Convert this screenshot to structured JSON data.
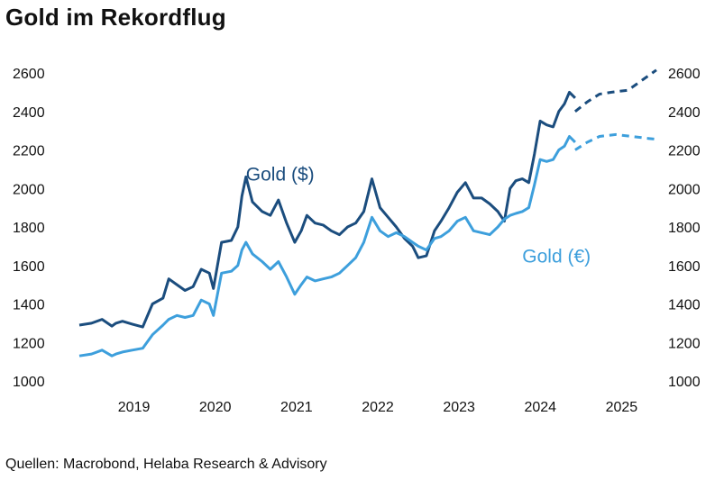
{
  "title": "Gold im Rekordflug",
  "source": "Quellen: Macrobond, Helaba Research & Advisory",
  "colors": {
    "usd": "#1b4d7e",
    "eur": "#3d9fdc"
  },
  "chart_data": {
    "type": "line",
    "title": "Gold im Rekordflug",
    "xlabel": "",
    "ylabel": "",
    "xlim": [
      2018.55,
      2025.65
    ],
    "ylim": [
      1000,
      2600
    ],
    "y_ticks": [
      1000,
      1200,
      1400,
      1600,
      1800,
      2000,
      2200,
      2400,
      2600
    ],
    "y_tick_labels": [
      "1000",
      "1200",
      "1400",
      "1600",
      "1800",
      "2000",
      "2200",
      "2400",
      "2600"
    ],
    "x_tick_labels": [
      {
        "label": "2019",
        "x": 2019.0
      },
      {
        "label": "2020",
        "x": 2020.0
      },
      {
        "label": "2021",
        "x": 2021.0
      },
      {
        "label": "2022",
        "x": 2022.0
      },
      {
        "label": "2023",
        "x": 2023.0
      },
      {
        "label": "2024",
        "x": 2024.0
      },
      {
        "label": "2025",
        "x": 2025.0
      }
    ],
    "grid": false,
    "axes": "y-axis labels on both left and right",
    "series": [
      {
        "name": "Gold ($)",
        "label_pos": [
          2020.6,
          2040
        ],
        "actual": [
          [
            2018.55,
            1290
          ],
          [
            2018.7,
            1300
          ],
          [
            2018.83,
            1320
          ],
          [
            2018.95,
            1285
          ],
          [
            2019.0,
            1300
          ],
          [
            2019.08,
            1310
          ],
          [
            2019.2,
            1295
          ],
          [
            2019.33,
            1280
          ],
          [
            2019.45,
            1400
          ],
          [
            2019.58,
            1430
          ],
          [
            2019.65,
            1530
          ],
          [
            2019.75,
            1500
          ],
          [
            2019.85,
            1470
          ],
          [
            2019.95,
            1490
          ],
          [
            2020.05,
            1580
          ],
          [
            2020.15,
            1560
          ],
          [
            2020.2,
            1480
          ],
          [
            2020.3,
            1720
          ],
          [
            2020.42,
            1730
          ],
          [
            2020.5,
            1800
          ],
          [
            2020.55,
            1960
          ],
          [
            2020.6,
            2060
          ],
          [
            2020.68,
            1930
          ],
          [
            2020.8,
            1880
          ],
          [
            2020.9,
            1860
          ],
          [
            2021.0,
            1940
          ],
          [
            2021.1,
            1820
          ],
          [
            2021.2,
            1720
          ],
          [
            2021.28,
            1780
          ],
          [
            2021.35,
            1860
          ],
          [
            2021.45,
            1820
          ],
          [
            2021.55,
            1810
          ],
          [
            2021.65,
            1780
          ],
          [
            2021.75,
            1760
          ],
          [
            2021.85,
            1800
          ],
          [
            2021.95,
            1820
          ],
          [
            2022.05,
            1880
          ],
          [
            2022.15,
            2050
          ],
          [
            2022.25,
            1900
          ],
          [
            2022.35,
            1850
          ],
          [
            2022.45,
            1800
          ],
          [
            2022.55,
            1740
          ],
          [
            2022.65,
            1700
          ],
          [
            2022.72,
            1640
          ],
          [
            2022.82,
            1650
          ],
          [
            2022.92,
            1780
          ],
          [
            2023.0,
            1830
          ],
          [
            2023.1,
            1900
          ],
          [
            2023.2,
            1980
          ],
          [
            2023.3,
            2030
          ],
          [
            2023.4,
            1950
          ],
          [
            2023.5,
            1950
          ],
          [
            2023.6,
            1920
          ],
          [
            2023.7,
            1880
          ],
          [
            2023.78,
            1830
          ],
          [
            2023.85,
            2000
          ],
          [
            2023.92,
            2040
          ],
          [
            2024.0,
            2050
          ],
          [
            2024.08,
            2030
          ],
          [
            2024.15,
            2180
          ],
          [
            2024.22,
            2350
          ],
          [
            2024.3,
            2330
          ],
          [
            2024.38,
            2320
          ],
          [
            2024.45,
            2400
          ],
          [
            2024.52,
            2440
          ],
          [
            2024.58,
            2500
          ],
          [
            2024.65,
            2470
          ]
        ],
        "forecast": [
          [
            2024.65,
            2400
          ],
          [
            2024.8,
            2450
          ],
          [
            2024.95,
            2490
          ],
          [
            2025.1,
            2500
          ],
          [
            2025.3,
            2510
          ],
          [
            2025.5,
            2570
          ],
          [
            2025.65,
            2615
          ]
        ]
      },
      {
        "name": "Gold (€)",
        "label_pos": [
          2024.0,
          1615
        ],
        "actual": [
          [
            2018.55,
            1130
          ],
          [
            2018.7,
            1140
          ],
          [
            2018.83,
            1160
          ],
          [
            2018.95,
            1130
          ],
          [
            2019.0,
            1140
          ],
          [
            2019.08,
            1150
          ],
          [
            2019.2,
            1160
          ],
          [
            2019.33,
            1170
          ],
          [
            2019.45,
            1240
          ],
          [
            2019.58,
            1290
          ],
          [
            2019.65,
            1320
          ],
          [
            2019.75,
            1340
          ],
          [
            2019.85,
            1330
          ],
          [
            2019.95,
            1340
          ],
          [
            2020.05,
            1420
          ],
          [
            2020.15,
            1400
          ],
          [
            2020.2,
            1340
          ],
          [
            2020.3,
            1560
          ],
          [
            2020.42,
            1570
          ],
          [
            2020.5,
            1600
          ],
          [
            2020.55,
            1680
          ],
          [
            2020.6,
            1720
          ],
          [
            2020.68,
            1660
          ],
          [
            2020.8,
            1620
          ],
          [
            2020.9,
            1580
          ],
          [
            2021.0,
            1620
          ],
          [
            2021.1,
            1540
          ],
          [
            2021.2,
            1450
          ],
          [
            2021.28,
            1500
          ],
          [
            2021.35,
            1540
          ],
          [
            2021.45,
            1520
          ],
          [
            2021.55,
            1530
          ],
          [
            2021.65,
            1540
          ],
          [
            2021.75,
            1560
          ],
          [
            2021.85,
            1600
          ],
          [
            2021.95,
            1640
          ],
          [
            2022.05,
            1720
          ],
          [
            2022.15,
            1850
          ],
          [
            2022.25,
            1780
          ],
          [
            2022.35,
            1750
          ],
          [
            2022.45,
            1770
          ],
          [
            2022.55,
            1750
          ],
          [
            2022.65,
            1720
          ],
          [
            2022.72,
            1700
          ],
          [
            2022.82,
            1680
          ],
          [
            2022.92,
            1740
          ],
          [
            2023.0,
            1750
          ],
          [
            2023.1,
            1780
          ],
          [
            2023.2,
            1830
          ],
          [
            2023.3,
            1850
          ],
          [
            2023.4,
            1780
          ],
          [
            2023.5,
            1770
          ],
          [
            2023.6,
            1760
          ],
          [
            2023.7,
            1800
          ],
          [
            2023.78,
            1840
          ],
          [
            2023.85,
            1860
          ],
          [
            2023.92,
            1870
          ],
          [
            2024.0,
            1880
          ],
          [
            2024.08,
            1900
          ],
          [
            2024.15,
            2020
          ],
          [
            2024.22,
            2150
          ],
          [
            2024.3,
            2140
          ],
          [
            2024.38,
            2150
          ],
          [
            2024.45,
            2200
          ],
          [
            2024.52,
            2220
          ],
          [
            2024.58,
            2270
          ],
          [
            2024.65,
            2240
          ]
        ],
        "forecast": [
          [
            2024.65,
            2200
          ],
          [
            2024.8,
            2240
          ],
          [
            2024.95,
            2270
          ],
          [
            2025.15,
            2280
          ],
          [
            2025.35,
            2270
          ],
          [
            2025.55,
            2260
          ],
          [
            2025.65,
            2255
          ]
        ]
      }
    ]
  }
}
